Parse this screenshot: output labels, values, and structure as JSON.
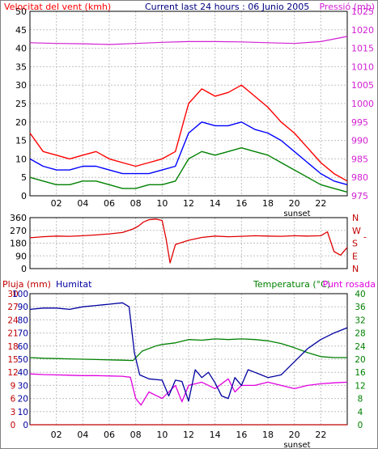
{
  "chart_data": [
    {
      "type": "line",
      "title": "Current last 24 hours : 06 Junio 2005",
      "left_label": "Velocitat del vent (kmh)",
      "right_label": "Pressió (mb)",
      "x_ticks": [
        "02",
        "04",
        "06",
        "08",
        "10",
        "12",
        "14",
        "16",
        "18",
        "20",
        "22"
      ],
      "x_annotation": "sunset",
      "ylim_left": [
        0,
        50
      ],
      "yticks_left": [
        "0",
        "5",
        "10",
        "15",
        "20",
        "25",
        "30",
        "35",
        "40",
        "45",
        "50"
      ],
      "ylim_right": [
        975,
        1025
      ],
      "yticks_right": [
        "975",
        "980",
        "985",
        "990",
        "995",
        "1000",
        "1005",
        "1010",
        "1015",
        "1020",
        "1025"
      ],
      "series": [
        {
          "key": "pressure",
          "axis": "right",
          "x": [
            0,
            2,
            4,
            6,
            8,
            10,
            12,
            14,
            16,
            18,
            20,
            22,
            24
          ],
          "y": [
            1016.5,
            1016.3,
            1016.2,
            1016.0,
            1016.3,
            1016.6,
            1016.8,
            1016.8,
            1016.7,
            1016.5,
            1016.3,
            1016.8,
            1018.2
          ]
        },
        {
          "key": "gust",
          "axis": "left",
          "x": [
            0,
            1,
            2,
            3,
            4,
            5,
            6,
            7,
            8,
            9,
            10,
            11,
            12,
            13,
            14,
            15,
            16,
            17,
            18,
            19,
            20,
            21,
            22,
            23,
            24
          ],
          "y": [
            17,
            12,
            11,
            10,
            11,
            12,
            10,
            9,
            8,
            9,
            10,
            12,
            25,
            29,
            27,
            28,
            30,
            27,
            24,
            20,
            17,
            13,
            9,
            6,
            4
          ]
        },
        {
          "key": "avg",
          "axis": "left",
          "x": [
            0,
            1,
            2,
            3,
            4,
            5,
            6,
            7,
            8,
            9,
            10,
            11,
            12,
            13,
            14,
            15,
            16,
            17,
            18,
            19,
            20,
            21,
            22,
            23,
            24
          ],
          "y": [
            10,
            8,
            7,
            7,
            8,
            8,
            7,
            6,
            6,
            6,
            7,
            8,
            17,
            20,
            19,
            19,
            20,
            18,
            17,
            15,
            12,
            9,
            6,
            4,
            3
          ]
        },
        {
          "key": "min",
          "axis": "left",
          "x": [
            0,
            1,
            2,
            3,
            4,
            5,
            6,
            7,
            8,
            9,
            10,
            11,
            12,
            13,
            14,
            15,
            16,
            17,
            18,
            19,
            20,
            21,
            22,
            23,
            24
          ],
          "y": [
            5,
            4,
            3,
            3,
            4,
            4,
            3,
            2,
            2,
            3,
            3,
            4,
            10,
            12,
            11,
            12,
            13,
            12,
            11,
            9,
            7,
            5,
            3,
            2,
            1
          ]
        }
      ]
    },
    {
      "type": "line",
      "ylim": [
        0,
        360
      ],
      "yticks": [
        "0",
        "90",
        "180",
        "270",
        "360"
      ],
      "right_ticks": [
        "N",
        "W",
        "S",
        "E",
        "N"
      ],
      "series": [
        {
          "key": "dir",
          "x": [
            0,
            1,
            2,
            3,
            4,
            5,
            6,
            7,
            7.8,
            8.2,
            8.6,
            9.0,
            9.5,
            10.0,
            10.3,
            10.6,
            11,
            12,
            13,
            14,
            15,
            16,
            17,
            18,
            19,
            20,
            21,
            22,
            22.5,
            23,
            23.5,
            24
          ],
          "y": [
            218,
            225,
            230,
            228,
            232,
            238,
            245,
            255,
            280,
            300,
            330,
            345,
            350,
            340,
            210,
            40,
            170,
            200,
            220,
            230,
            225,
            228,
            232,
            230,
            228,
            232,
            230,
            232,
            260,
            120,
            95,
            150
          ]
        }
      ]
    },
    {
      "type": "line",
      "labels": {
        "rain": "Pluja (mm)",
        "hum": "Humitat",
        "temp": "Temperatura (°C)",
        "dew": "Punt rosada"
      },
      "x_ticks": [
        "02",
        "04",
        "06",
        "08",
        "10",
        "12",
        "14",
        "16",
        "18",
        "20",
        "22"
      ],
      "x_annotation": "sunset",
      "yticks_rain": [
        "0",
        "3",
        "6",
        "9",
        "12",
        "15",
        "18",
        "21",
        "24",
        "27",
        "30"
      ],
      "yticks_hum": [
        "0",
        "10",
        "20",
        "30",
        "40",
        "50",
        "60",
        "70",
        "80",
        "90",
        "100"
      ],
      "yticks_temp": [
        "0",
        "4",
        "8",
        "12",
        "16",
        "20",
        "24",
        "28",
        "32",
        "36",
        "40"
      ],
      "ylim_rain": [
        0,
        30
      ],
      "ylim_hum": [
        0,
        100
      ],
      "ylim_temp": [
        0,
        40
      ],
      "series": [
        {
          "key": "hum",
          "axis": "hum",
          "x": [
            0,
            1,
            2,
            3,
            4,
            5,
            6,
            7,
            7.5,
            7.9,
            8.3,
            9,
            10,
            10.5,
            11,
            11.5,
            12,
            12.5,
            13,
            13.5,
            14,
            14.5,
            15,
            15.5,
            16,
            16.5,
            17,
            17.5,
            18,
            19,
            20,
            21,
            22,
            23,
            24
          ],
          "y": [
            88,
            89,
            89,
            88,
            90,
            91,
            92,
            93,
            90,
            55,
            38,
            35,
            34,
            22,
            34,
            33,
            18,
            42,
            36,
            40,
            32,
            22,
            20,
            36,
            30,
            42,
            40,
            38,
            36,
            38,
            48,
            58,
            65,
            70,
            74
          ]
        },
        {
          "key": "temp",
          "axis": "temp",
          "x": [
            0,
            1,
            2,
            3,
            4,
            5,
            6,
            7,
            7.8,
            8.5,
            9.5,
            10,
            11,
            12,
            13,
            14,
            15,
            16,
            17,
            18,
            19,
            20,
            21,
            22,
            23,
            24
          ],
          "y": [
            20.5,
            20.3,
            20.2,
            20.1,
            20.0,
            19.9,
            19.8,
            19.7,
            19.6,
            22.5,
            24.0,
            24.5,
            25.0,
            26.0,
            25.8,
            26.2,
            26.0,
            26.2,
            26.0,
            25.6,
            24.8,
            23.5,
            22.0,
            20.8,
            20.5,
            20.5
          ]
        },
        {
          "key": "dew",
          "axis": "temp",
          "x": [
            0,
            1,
            2,
            3,
            4,
            5,
            6,
            7,
            7.6,
            8.0,
            8.4,
            9,
            10,
            11,
            11.5,
            12,
            13,
            14,
            15,
            15.5,
            16,
            17,
            18,
            19,
            20,
            21,
            22,
            23,
            24
          ],
          "y": [
            15.5,
            15.3,
            15.2,
            15.1,
            15.0,
            15.0,
            14.9,
            14.8,
            14.5,
            8,
            6,
            10,
            8,
            12,
            7,
            12,
            13,
            11,
            14,
            10,
            12,
            12,
            13,
            12,
            11,
            12,
            12.5,
            12.8,
            13.0
          ]
        },
        {
          "key": "rain",
          "axis": "rain",
          "x": [
            0,
            24
          ],
          "y": [
            0,
            0
          ]
        }
      ]
    }
  ],
  "colors": {
    "gust": "#ff0000",
    "avg": "#0000ff",
    "min": "#008000",
    "pressure": "#d21fd2",
    "dir": "#e00000",
    "hum": "#0000a0",
    "temp": "#008000",
    "dew": "#e000e0",
    "rain": "#c00000",
    "axis": "#000000",
    "grid": "#c0c0c0"
  }
}
